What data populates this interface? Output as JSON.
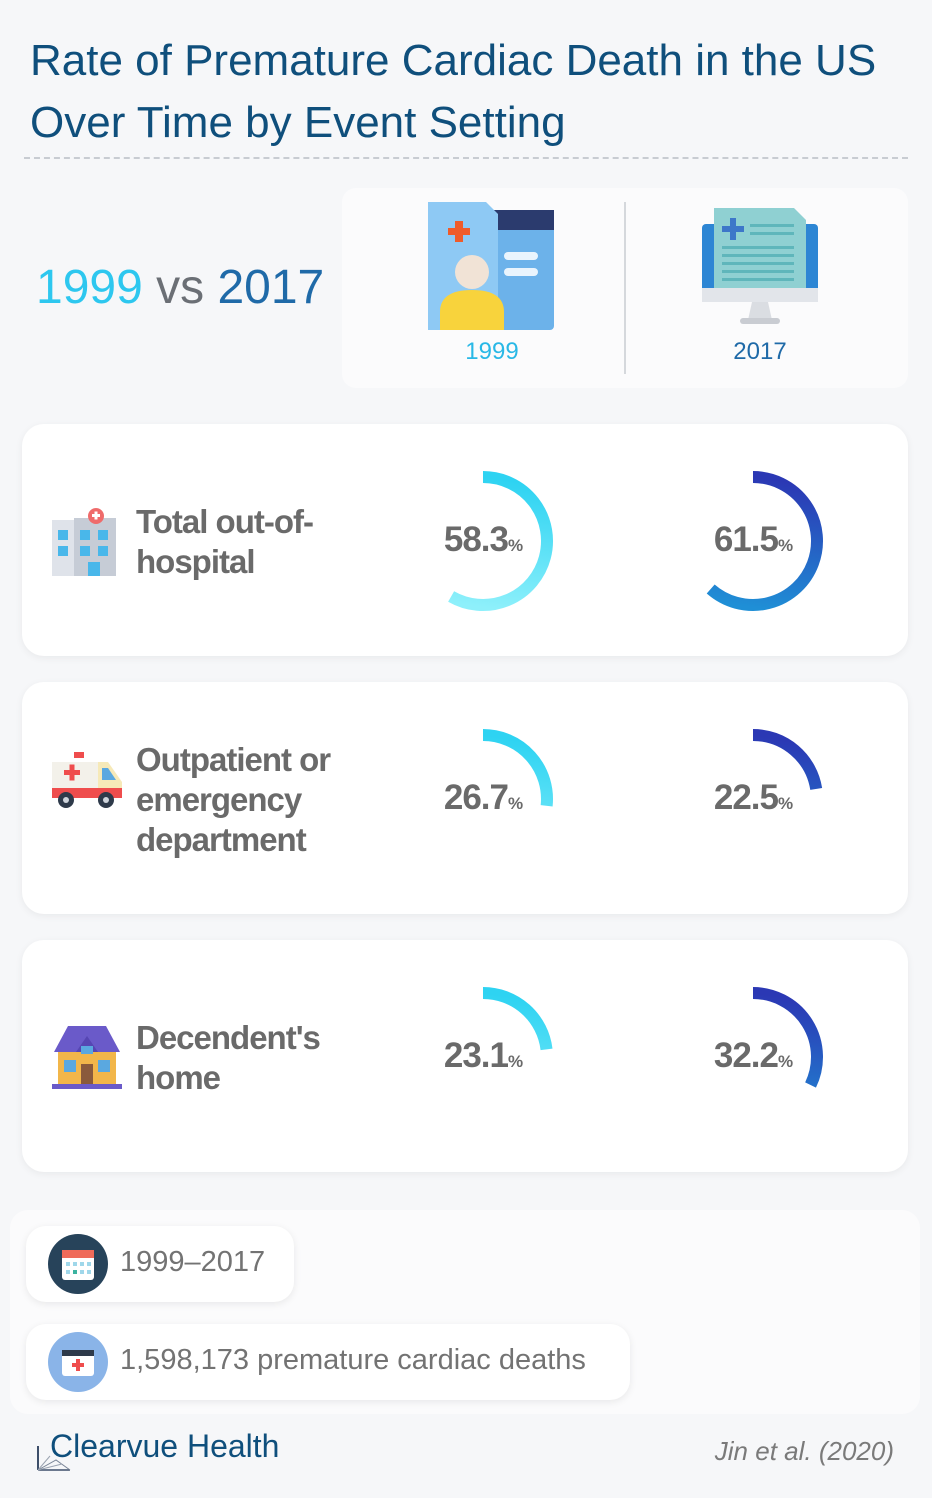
{
  "title": "Rate of Premature Cardiac Death in the US Over Time by Event Setting",
  "comparison": {
    "year_a": "1999",
    "vs": "vs",
    "year_b": "2017"
  },
  "legend": {
    "year_a": "1999",
    "year_b": "2017"
  },
  "colors": {
    "year_a_start": "#2ed3f2",
    "year_a_end": "#8ef0fb",
    "year_b_start": "#1f8fd6",
    "year_b_end": "#2b38b4",
    "title": "#0f4f7c"
  },
  "chart_data": {
    "type": "radial-gauge",
    "unit": "%",
    "categories": [
      "Total out-of-hospital",
      "Outpatient or emergency department",
      "Decendent's home"
    ],
    "series": [
      {
        "name": "1999",
        "values": [
          58.3,
          26.7,
          23.1
        ]
      },
      {
        "name": "2017",
        "values": [
          61.5,
          22.5,
          32.2
        ]
      }
    ]
  },
  "rows": [
    {
      "label": "Total out-of-hospital",
      "icon": "hospital-building-icon",
      "value_1999": "58.3",
      "value_2017": "61.5",
      "unit": "%"
    },
    {
      "label": "Outpatient or emergency department",
      "icon": "ambulance-icon",
      "value_1999": "26.7",
      "value_2017": "22.5",
      "unit": "%"
    },
    {
      "label": "Decendent's home",
      "icon": "house-icon",
      "value_1999": "23.1",
      "value_2017": "32.2",
      "unit": "%"
    }
  ],
  "info": {
    "period": "1999–2017",
    "period_icon": "calendar-icon",
    "deaths": "1,598,173 premature cardiac deaths",
    "deaths_icon": "medical-folder-icon"
  },
  "footer": {
    "brand": "Clearvue Health",
    "source": "Jin et al. (2020)"
  }
}
